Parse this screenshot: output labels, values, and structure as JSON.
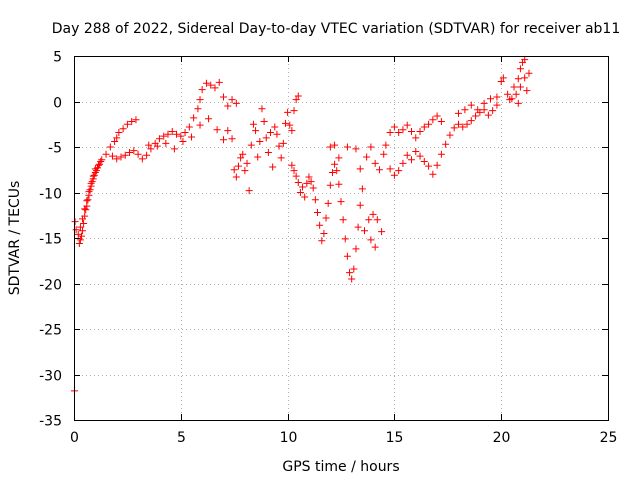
{
  "chart_data": {
    "type": "scatter",
    "title": "Day 288 of 2022, Sidereal Day-to-day VTEC variation (SDTVAR) for receiver ab11",
    "xlabel": "GPS time / hours",
    "ylabel": "SDTVAR / TECUs",
    "xlim": [
      0,
      25
    ],
    "ylim": [
      -35,
      5
    ],
    "xticks": [
      "0",
      "5",
      "10",
      "15",
      "20",
      "25"
    ],
    "yticks": [
      "5",
      "0",
      "-5",
      "-10",
      "-15",
      "-20",
      "-25",
      "-30",
      "-35"
    ],
    "grid": true,
    "marker": "plus",
    "color": "#ff0000",
    "series": [
      {
        "points": [
          [
            0.02,
            -31.8
          ],
          [
            0.05,
            -13.2
          ],
          [
            0.1,
            -14.1
          ],
          [
            0.2,
            -14.6
          ],
          [
            0.25,
            -15.6
          ],
          [
            0.3,
            -15.2
          ],
          [
            0.35,
            -14.8
          ],
          [
            0.4,
            -14.2
          ],
          [
            0.45,
            -13.4
          ],
          [
            0.5,
            -12.6
          ],
          [
            0.55,
            -11.9
          ],
          [
            0.6,
            -11.5
          ],
          [
            0.65,
            -10.8
          ],
          [
            0.7,
            -10.3
          ],
          [
            0.75,
            -9.7
          ],
          [
            0.8,
            -9.3
          ],
          [
            0.85,
            -8.8
          ],
          [
            0.9,
            -8.5
          ],
          [
            0.95,
            -8.1
          ],
          [
            1.0,
            -7.8
          ],
          [
            1.05,
            -7.6
          ],
          [
            1.1,
            -7.3
          ],
          [
            1.15,
            -7.0
          ],
          [
            1.2,
            -6.9
          ],
          [
            1.25,
            -6.6
          ],
          [
            1.3,
            -6.4
          ],
          [
            0.3,
            -13.8
          ],
          [
            0.4,
            -12.9
          ],
          [
            0.5,
            -11.8
          ],
          [
            0.6,
            -10.9
          ],
          [
            0.7,
            -9.9
          ],
          [
            0.8,
            -9.0
          ],
          [
            0.9,
            -8.2
          ],
          [
            1.0,
            -7.4
          ],
          [
            1.5,
            -5.8
          ],
          [
            1.7,
            -5.0
          ],
          [
            1.9,
            -4.4
          ],
          [
            2.0,
            -4.0
          ],
          [
            2.1,
            -3.4
          ],
          [
            2.3,
            -3.0
          ],
          [
            2.5,
            -2.5
          ],
          [
            2.7,
            -2.2
          ],
          [
            2.9,
            -2.0
          ],
          [
            1.8,
            -6.0
          ],
          [
            2.0,
            -6.3
          ],
          [
            2.2,
            -6.1
          ],
          [
            2.4,
            -5.9
          ],
          [
            2.6,
            -5.6
          ],
          [
            2.8,
            -5.4
          ],
          [
            3.0,
            -5.8
          ],
          [
            3.2,
            -6.3
          ],
          [
            3.4,
            -5.9
          ],
          [
            3.6,
            -5.2
          ],
          [
            3.8,
            -4.6
          ],
          [
            4.0,
            -4.1
          ],
          [
            4.2,
            -3.8
          ],
          [
            4.4,
            -3.6
          ],
          [
            4.6,
            -3.3
          ],
          [
            4.8,
            -3.6
          ],
          [
            5.0,
            -3.8
          ],
          [
            5.2,
            -3.4
          ],
          [
            5.4,
            -2.8
          ],
          [
            5.6,
            -1.8
          ],
          [
            5.8,
            -0.8
          ],
          [
            5.9,
            0.2
          ],
          [
            6.0,
            1.3
          ],
          [
            6.2,
            2.0
          ],
          [
            6.4,
            1.8
          ],
          [
            6.6,
            1.5
          ],
          [
            6.8,
            2.1
          ],
          [
            7.0,
            0.5
          ],
          [
            7.2,
            -0.5
          ],
          [
            7.4,
            0.2
          ],
          [
            7.6,
            -0.2
          ],
          [
            3.5,
            -4.8
          ],
          [
            3.9,
            -4.9
          ],
          [
            4.3,
            -4.6
          ],
          [
            4.7,
            -5.2
          ],
          [
            5.1,
            -4.4
          ],
          [
            5.5,
            -3.9
          ],
          [
            5.9,
            -2.6
          ],
          [
            6.3,
            -1.9
          ],
          [
            6.7,
            -3.1
          ],
          [
            7.0,
            -4.2
          ],
          [
            7.2,
            -3.2
          ],
          [
            7.4,
            -4.1
          ],
          [
            7.5,
            -7.5
          ],
          [
            7.6,
            -8.3
          ],
          [
            7.7,
            -7.1
          ],
          [
            7.8,
            -6.2
          ],
          [
            7.9,
            -5.8
          ],
          [
            8.0,
            -7.6
          ],
          [
            8.1,
            -6.8
          ],
          [
            8.2,
            -9.8
          ],
          [
            8.3,
            -4.8
          ],
          [
            8.4,
            -2.5
          ],
          [
            8.5,
            -3.2
          ],
          [
            8.6,
            -6.1
          ],
          [
            8.7,
            -4.4
          ],
          [
            8.8,
            -0.8
          ],
          [
            8.9,
            -2.2
          ],
          [
            9.0,
            -4.0
          ],
          [
            9.1,
            -5.6
          ],
          [
            9.2,
            -3.4
          ],
          [
            9.3,
            -7.2
          ],
          [
            9.4,
            -2.8
          ],
          [
            9.5,
            -3.6
          ],
          [
            9.6,
            -4.9
          ],
          [
            9.7,
            -6.2
          ],
          [
            9.8,
            -4.6
          ],
          [
            9.9,
            -2.4
          ],
          [
            10.0,
            -1.2
          ],
          [
            10.1,
            -2.6
          ],
          [
            10.2,
            -3.2
          ],
          [
            10.3,
            -1.0
          ],
          [
            10.4,
            0.2
          ],
          [
            10.5,
            0.6
          ],
          [
            10.2,
            -7.0
          ],
          [
            10.3,
            -7.6
          ],
          [
            10.4,
            -8.2
          ],
          [
            10.5,
            -8.9
          ],
          [
            10.6,
            -10.0
          ],
          [
            10.7,
            -9.4
          ],
          [
            10.8,
            -10.5
          ],
          [
            10.9,
            -9.0
          ],
          [
            11.0,
            -8.3
          ],
          [
            11.1,
            -8.8
          ],
          [
            11.2,
            -9.5
          ],
          [
            11.3,
            -10.8
          ],
          [
            11.4,
            -12.2
          ],
          [
            11.5,
            -13.6
          ],
          [
            11.6,
            -15.3
          ],
          [
            11.7,
            -14.5
          ],
          [
            11.8,
            -12.8
          ],
          [
            11.9,
            -11.2
          ],
          [
            12.0,
            -9.2
          ],
          [
            12.1,
            -7.8
          ],
          [
            12.2,
            -6.9
          ],
          [
            12.3,
            -7.6
          ],
          [
            12.4,
            -9.1
          ],
          [
            12.5,
            -11.0
          ],
          [
            12.6,
            -13.0
          ],
          [
            12.7,
            -15.1
          ],
          [
            12.8,
            -17.0
          ],
          [
            12.9,
            -18.8
          ],
          [
            13.0,
            -19.5
          ],
          [
            13.1,
            -18.4
          ],
          [
            13.2,
            -16.2
          ],
          [
            13.3,
            -13.8
          ],
          [
            13.4,
            -11.4
          ],
          [
            13.5,
            -9.6
          ],
          [
            12.0,
            -5.0
          ],
          [
            12.2,
            -4.8
          ],
          [
            12.4,
            -6.2
          ],
          [
            12.8,
            -5.0
          ],
          [
            13.2,
            -5.2
          ],
          [
            13.4,
            -7.4
          ],
          [
            13.6,
            -14.2
          ],
          [
            13.8,
            -13.0
          ],
          [
            14.0,
            -12.4
          ],
          [
            14.2,
            -13.0
          ],
          [
            14.4,
            -14.3
          ],
          [
            14.1,
            -16.0
          ],
          [
            13.9,
            -15.2
          ],
          [
            13.7,
            -6.1
          ],
          [
            13.9,
            -5.0
          ],
          [
            14.1,
            -6.8
          ],
          [
            14.3,
            -7.5
          ],
          [
            14.5,
            -5.8
          ],
          [
            14.6,
            -4.8
          ],
          [
            14.8,
            -3.4
          ],
          [
            15.0,
            -2.8
          ],
          [
            15.2,
            -3.4
          ],
          [
            15.4,
            -3.1
          ],
          [
            15.6,
            -2.6
          ],
          [
            15.8,
            -3.3
          ],
          [
            16.0,
            -4.0
          ],
          [
            16.2,
            -3.3
          ],
          [
            16.4,
            -2.8
          ],
          [
            16.6,
            -2.5
          ],
          [
            16.8,
            -2.0
          ],
          [
            17.0,
            -1.6
          ],
          [
            17.2,
            -2.2
          ],
          [
            14.8,
            -7.4
          ],
          [
            15.0,
            -8.1
          ],
          [
            15.2,
            -7.6
          ],
          [
            15.4,
            -6.8
          ],
          [
            15.6,
            -5.9
          ],
          [
            15.8,
            -6.4
          ],
          [
            16.0,
            -5.5
          ],
          [
            16.2,
            -6.0
          ],
          [
            16.4,
            -6.6
          ],
          [
            16.6,
            -7.1
          ],
          [
            16.8,
            -8.0
          ],
          [
            17.0,
            -7.0
          ],
          [
            17.2,
            -5.8
          ],
          [
            17.4,
            -4.7
          ],
          [
            17.6,
            -3.7
          ],
          [
            17.8,
            -2.9
          ],
          [
            18.0,
            -2.5
          ],
          [
            18.2,
            -2.8
          ],
          [
            18.4,
            -2.5
          ],
          [
            18.6,
            -2.1
          ],
          [
            18.8,
            -1.6
          ],
          [
            19.0,
            -1.2
          ],
          [
            19.2,
            -0.9
          ],
          [
            19.4,
            -1.5
          ],
          [
            19.6,
            -1.0
          ],
          [
            19.8,
            -0.4
          ],
          [
            18.0,
            -1.3
          ],
          [
            18.3,
            -0.9
          ],
          [
            18.6,
            -0.4
          ],
          [
            18.9,
            -0.9
          ],
          [
            19.2,
            -0.2
          ],
          [
            19.5,
            0.3
          ],
          [
            19.8,
            0.5
          ],
          [
            20.0,
            2.2
          ],
          [
            20.1,
            2.6
          ],
          [
            20.3,
            0.8
          ],
          [
            20.5,
            0.3
          ],
          [
            20.6,
            1.6
          ],
          [
            20.8,
            2.5
          ],
          [
            20.9,
            3.6
          ],
          [
            21.0,
            4.3
          ],
          [
            21.1,
            4.6
          ],
          [
            20.4,
            0.2
          ],
          [
            20.7,
            0.8
          ],
          [
            20.9,
            1.6
          ],
          [
            21.1,
            2.6
          ],
          [
            21.3,
            3.1
          ],
          [
            20.8,
            -0.2
          ],
          [
            21.2,
            1.2
          ]
        ]
      }
    ]
  }
}
